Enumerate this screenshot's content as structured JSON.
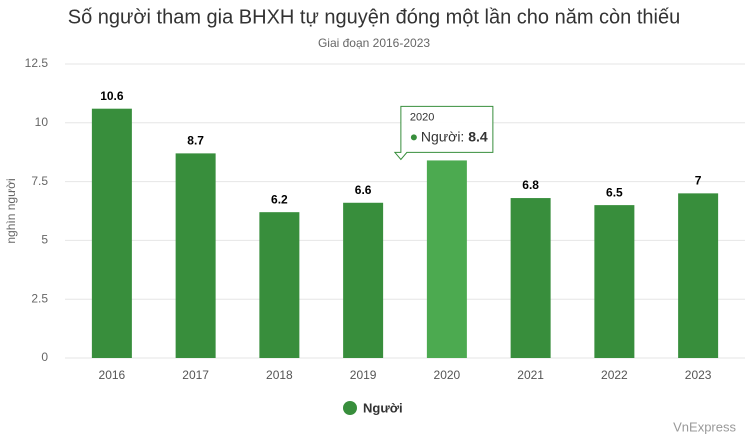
{
  "chart_data": {
    "type": "bar",
    "title": "Số người tham gia BHXH tự nguyện đóng một lần cho năm còn thiếu",
    "subtitle": "Giai đoạn 2016-2023",
    "y_label": "nghìn người",
    "categories": [
      "2016",
      "2017",
      "2018",
      "2019",
      "2020",
      "2021",
      "2022",
      "2023"
    ],
    "series": [
      {
        "name": "Người",
        "color": "#388e3c",
        "values": [
          10.6,
          8.7,
          6.2,
          6.6,
          8.4,
          6.8,
          6.5,
          7
        ]
      }
    ],
    "ylim": [
      0,
      12.5
    ],
    "yticks": [
      0,
      2.5,
      5,
      7.5,
      10,
      12.5
    ],
    "grid": true,
    "highlight_color": "#4caa50",
    "tooltip": {
      "header": "2020",
      "label": "Người:"
    },
    "credit": "VnExpress"
  }
}
